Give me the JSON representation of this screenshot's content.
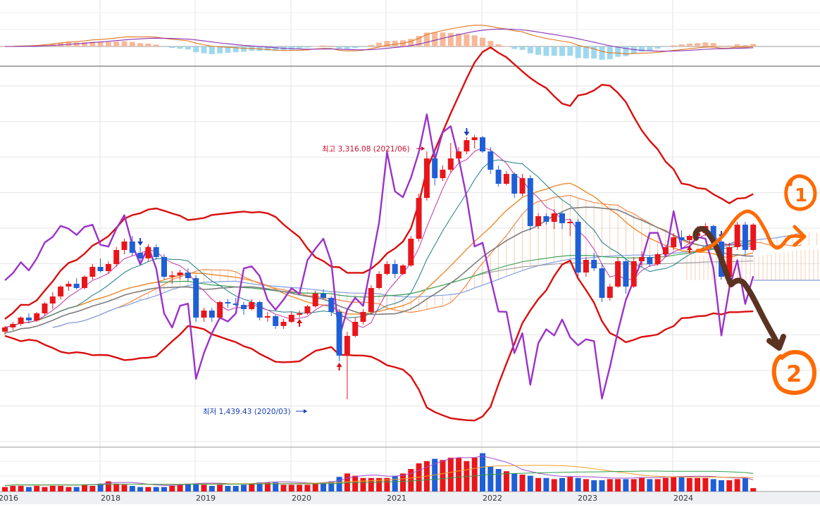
{
  "chart_data": {
    "type": "candlestick",
    "x_axis_labels": [
      "2016",
      "2018",
      "2019",
      "2020",
      "2021",
      "2022",
      "2023",
      "2024"
    ],
    "annotations": {
      "high": {
        "text": "최고 3,316.08 (2021/06)",
        "value": 3316.08,
        "date": "2021/06"
      },
      "low": {
        "text": "최저 1,439.43 (2020/03)",
        "value": 1439.43,
        "date": "2020/03"
      }
    },
    "handwritten_marks": [
      "1",
      "2"
    ],
    "colors": {
      "up": "#e8161b",
      "down": "#1f5fd6",
      "bollinger": "#d90f0f",
      "purple_line": "#9b32c9",
      "macd_hist_pos": "#f6b899",
      "macd_hist_neg": "#9fd8ee",
      "cloud": "#f0884a",
      "brown_mark": "#5b3322",
      "orange_mark": "#ff6a00"
    },
    "candles": [
      [
        1920,
        1960,
        1900,
        1950
      ],
      [
        1950,
        1990,
        1930,
        1975
      ],
      [
        1975,
        2030,
        1960,
        2020
      ],
      [
        2020,
        2050,
        1980,
        2000
      ],
      [
        2000,
        2060,
        1990,
        2050
      ],
      [
        2050,
        2130,
        2030,
        2120
      ],
      [
        2120,
        2200,
        2080,
        2170
      ],
      [
        2170,
        2250,
        2150,
        2240
      ],
      [
        2240,
        2280,
        2210,
        2260
      ],
      [
        2260,
        2300,
        2220,
        2230
      ],
      [
        2230,
        2320,
        2220,
        2310
      ],
      [
        2310,
        2400,
        2290,
        2380
      ],
      [
        2380,
        2440,
        2340,
        2350
      ],
      [
        2350,
        2420,
        2330,
        2400
      ],
      [
        2400,
        2520,
        2380,
        2500
      ],
      [
        2500,
        2580,
        2470,
        2560
      ],
      [
        2560,
        2600,
        2460,
        2480
      ],
      [
        2480,
        2520,
        2420,
        2440
      ],
      [
        2440,
        2540,
        2420,
        2520
      ],
      [
        2520,
        2540,
        2430,
        2450
      ],
      [
        2450,
        2470,
        2290,
        2310
      ],
      [
        2310,
        2350,
        2260,
        2320
      ],
      [
        2320,
        2360,
        2290,
        2340
      ],
      [
        2340,
        2370,
        2280,
        2300
      ],
      [
        2300,
        2320,
        1990,
        2020
      ],
      [
        2020,
        2090,
        1990,
        2070
      ],
      [
        2070,
        2090,
        1990,
        2020
      ],
      [
        2020,
        2140,
        2010,
        2130
      ],
      [
        2130,
        2150,
        2090,
        2120
      ],
      [
        2120,
        2160,
        2100,
        2110
      ],
      [
        2110,
        2130,
        2040,
        2080
      ],
      [
        2080,
        2150,
        2070,
        2130
      ],
      [
        2130,
        2140,
        2000,
        2020
      ],
      [
        2020,
        2060,
        1990,
        2030
      ],
      [
        2030,
        2040,
        1940,
        1960
      ],
      [
        1960,
        2010,
        1940,
        1990
      ],
      [
        1990,
        2060,
        1980,
        2040
      ],
      [
        2040,
        2070,
        2020,
        2050
      ],
      [
        2050,
        2110,
        2040,
        2100
      ],
      [
        2100,
        2210,
        2090,
        2190
      ],
      [
        2190,
        2220,
        2150,
        2160
      ],
      [
        2160,
        2170,
        2030,
        2060
      ],
      [
        2060,
        2080,
        1710,
        1750
      ],
      [
        1750,
        1920,
        1440,
        1890
      ],
      [
        1890,
        2020,
        1880,
        1990
      ],
      [
        1990,
        2080,
        1970,
        2060
      ],
      [
        2060,
        2250,
        2050,
        2230
      ],
      [
        2230,
        2350,
        2220,
        2330
      ],
      [
        2330,
        2420,
        2320,
        2400
      ],
      [
        2400,
        2430,
        2300,
        2330
      ],
      [
        2330,
        2400,
        2320,
        2390
      ],
      [
        2390,
        2600,
        2380,
        2580
      ],
      [
        2580,
        2900,
        2560,
        2870
      ],
      [
        2870,
        3200,
        2850,
        3150
      ],
      [
        3150,
        3220,
        2960,
        3010
      ],
      [
        3010,
        3100,
        2990,
        3070
      ],
      [
        3070,
        3260,
        3050,
        3150
      ],
      [
        3150,
        3230,
        3120,
        3200
      ],
      [
        3200,
        3300,
        3180,
        3280
      ],
      [
        3280,
        3316,
        3220,
        3300
      ],
      [
        3300,
        3310,
        3190,
        3200
      ],
      [
        3200,
        3230,
        3040,
        3070
      ],
      [
        3070,
        3100,
        2950,
        2970
      ],
      [
        2970,
        3060,
        2960,
        3040
      ],
      [
        3040,
        3050,
        2870,
        2900
      ],
      [
        2900,
        3040,
        2880,
        3010
      ],
      [
        3010,
        3030,
        2640,
        2670
      ],
      [
        2670,
        2760,
        2650,
        2740
      ],
      [
        2740,
        2760,
        2680,
        2700
      ],
      [
        2700,
        2790,
        2650,
        2760
      ],
      [
        2760,
        2770,
        2650,
        2690
      ],
      [
        2690,
        2720,
        2600,
        2700
      ],
      [
        2700,
        2720,
        2310,
        2340
      ],
      [
        2340,
        2450,
        2310,
        2430
      ],
      [
        2430,
        2480,
        2350,
        2370
      ],
      [
        2370,
        2400,
        2130,
        2160
      ],
      [
        2160,
        2260,
        2140,
        2240
      ],
      [
        2240,
        2450,
        2230,
        2420
      ],
      [
        2420,
        2440,
        2190,
        2240
      ],
      [
        2240,
        2450,
        2230,
        2420
      ],
      [
        2420,
        2490,
        2380,
        2450
      ],
      [
        2450,
        2460,
        2380,
        2400
      ],
      [
        2400,
        2480,
        2390,
        2470
      ],
      [
        2470,
        2530,
        2450,
        2520
      ],
      [
        2520,
        2620,
        2500,
        2590
      ],
      [
        2590,
        2640,
        2510,
        2570
      ],
      [
        2570,
        2610,
        2540,
        2600
      ],
      [
        2600,
        2670,
        2590,
        2620
      ],
      [
        2620,
        2690,
        2600,
        2670
      ],
      [
        2670,
        2680,
        2550,
        2560
      ],
      [
        2560,
        2570,
        2290,
        2310
      ],
      [
        2310,
        2550,
        2300,
        2520
      ],
      [
        2520,
        2700,
        2500,
        2680
      ],
      [
        2680,
        2700,
        2460,
        2500
      ],
      [
        2500,
        2690,
        2490,
        2680
      ]
    ],
    "volumes": [
      [
        4,
        5
      ],
      [
        5,
        4
      ],
      [
        5,
        4
      ],
      [
        4,
        5
      ],
      [
        5,
        4
      ],
      [
        4,
        4
      ],
      [
        5,
        4
      ],
      [
        5,
        4
      ],
      [
        4,
        4
      ],
      [
        4,
        4
      ],
      [
        6,
        4
      ],
      [
        5,
        4
      ],
      [
        7,
        4
      ],
      [
        9,
        4
      ],
      [
        7,
        4
      ],
      [
        6,
        5
      ],
      [
        5,
        4
      ],
      [
        4,
        4
      ],
      [
        4,
        4
      ],
      [
        4,
        4
      ],
      [
        4,
        4
      ],
      [
        5,
        4
      ],
      [
        6,
        4
      ],
      [
        7,
        4
      ],
      [
        7,
        4
      ],
      [
        6,
        5
      ],
      [
        5,
        4
      ],
      [
        6,
        4
      ],
      [
        5,
        4
      ],
      [
        5,
        4
      ],
      [
        6,
        4
      ],
      [
        7,
        4
      ],
      [
        8,
        4
      ],
      [
        8,
        4
      ],
      [
        8,
        4
      ],
      [
        6,
        4
      ],
      [
        6,
        4
      ],
      [
        6,
        4
      ],
      [
        6,
        4
      ],
      [
        7,
        4
      ],
      [
        8,
        4
      ],
      [
        9,
        4
      ],
      [
        13,
        4
      ],
      [
        16,
        4
      ],
      [
        14,
        4
      ],
      [
        12,
        4
      ],
      [
        12,
        4
      ],
      [
        12,
        4
      ],
      [
        12,
        4
      ],
      [
        14,
        4
      ],
      [
        16,
        4
      ],
      [
        20,
        4
      ],
      [
        25,
        4
      ],
      [
        27,
        4
      ],
      [
        29,
        4
      ],
      [
        28,
        4
      ],
      [
        30,
        4
      ],
      [
        30,
        4
      ],
      [
        27,
        4
      ],
      [
        30,
        4
      ],
      [
        34,
        4
      ],
      [
        22,
        4
      ],
      [
        20,
        4
      ],
      [
        18,
        4
      ],
      [
        16,
        4
      ],
      [
        15,
        4
      ],
      [
        14,
        4
      ],
      [
        12,
        4
      ],
      [
        12,
        4
      ],
      [
        11,
        4
      ],
      [
        12,
        4
      ],
      [
        13,
        4
      ],
      [
        12,
        4
      ],
      [
        11,
        4
      ],
      [
        10,
        4
      ],
      [
        10,
        4
      ],
      [
        11,
        4
      ],
      [
        11,
        4
      ],
      [
        11,
        4
      ],
      [
        11,
        4
      ],
      [
        12,
        4
      ],
      [
        11,
        4
      ],
      [
        11,
        4
      ],
      [
        12,
        4
      ],
      [
        13,
        4
      ],
      [
        13,
        4
      ],
      [
        12,
        4
      ],
      [
        12,
        4
      ],
      [
        12,
        4
      ],
      [
        11,
        4
      ],
      [
        10,
        4
      ],
      [
        10,
        4
      ],
      [
        11,
        4
      ],
      [
        12,
        4
      ],
      [
        3,
        4
      ]
    ]
  }
}
